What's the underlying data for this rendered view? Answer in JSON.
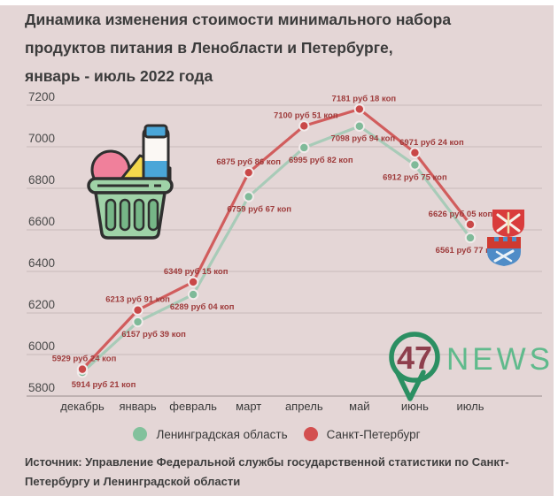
{
  "title": {
    "lines": [
      "Динамика изменения стоимости минимального набора",
      "продуктов питания в Ленобласти и Петербурге,",
      "январь - июль 2022 года"
    ]
  },
  "chart_data": {
    "type": "line",
    "categories": [
      "декабрь",
      "январь",
      "февраль",
      "март",
      "апрель",
      "май",
      "июнь",
      "июль"
    ],
    "series": [
      {
        "name": "Ленинградская область",
        "line_color": "#a8cbb8",
        "point_color": "#7fba99",
        "values": [
          5914.21,
          6157.39,
          6289.04,
          6759.67,
          6995.82,
          7098.94,
          6912.75,
          6561.77
        ],
        "labels": [
          "5914 руб 21 коп",
          "6157 руб 39 коп",
          "6289 руб 04 коп",
          "6759 руб 67 коп",
          "6995 руб 82 коп",
          "7098 руб 94 коп",
          "6912 руб 75 коп",
          "6561 руб 77 коп"
        ]
      },
      {
        "name": "Санкт-Петербург",
        "line_color": "#d15d5d",
        "point_color": "#c94848",
        "values": [
          5929.24,
          6213.91,
          6349.15,
          6875.86,
          7100.51,
          7181.18,
          6971.24,
          6626.05
        ],
        "labels": [
          "5929 руб 24 коп",
          "6213 руб 91 коп",
          "6349 руб 15 коп",
          "6875 руб 86 коп",
          "7100 руб 51 коп",
          "7181 руб 18 коп",
          "6971 руб 24 коп",
          "6626 руб 05 коп"
        ]
      }
    ],
    "ylim": [
      5800,
      7200
    ],
    "yticks": [
      5800,
      6000,
      6200,
      6400,
      6600,
      6800,
      7000,
      7200
    ],
    "grid": true,
    "legend_position": "bottom"
  },
  "legend": {
    "items": [
      {
        "label": "Ленинградская область",
        "color": "#82c19c"
      },
      {
        "label": "Санкт-Петербург",
        "color": "#d34f4f"
      }
    ]
  },
  "logo": {
    "number": "47",
    "text": "NEWS"
  },
  "source": {
    "lines": [
      "Источник: Управление Федеральной службы государственной статистики по Санкт-",
      "Петербургу и Ленинградской области"
    ]
  },
  "icons": {
    "basket": "grocery-basket-icon",
    "spb_crest": "saint-petersburg-crest-icon",
    "lenobl_crest": "leningrad-oblast-crest-icon",
    "logo_pin": "47news-pin-icon"
  },
  "colors": {
    "background": "#e4d6d6",
    "gridline": "#c8baba",
    "data_label": "#9e3b3b",
    "title_text": "#3b3b3b",
    "logo_green": "#2b8f62",
    "logo_number_red": "#8e3f4d"
  }
}
